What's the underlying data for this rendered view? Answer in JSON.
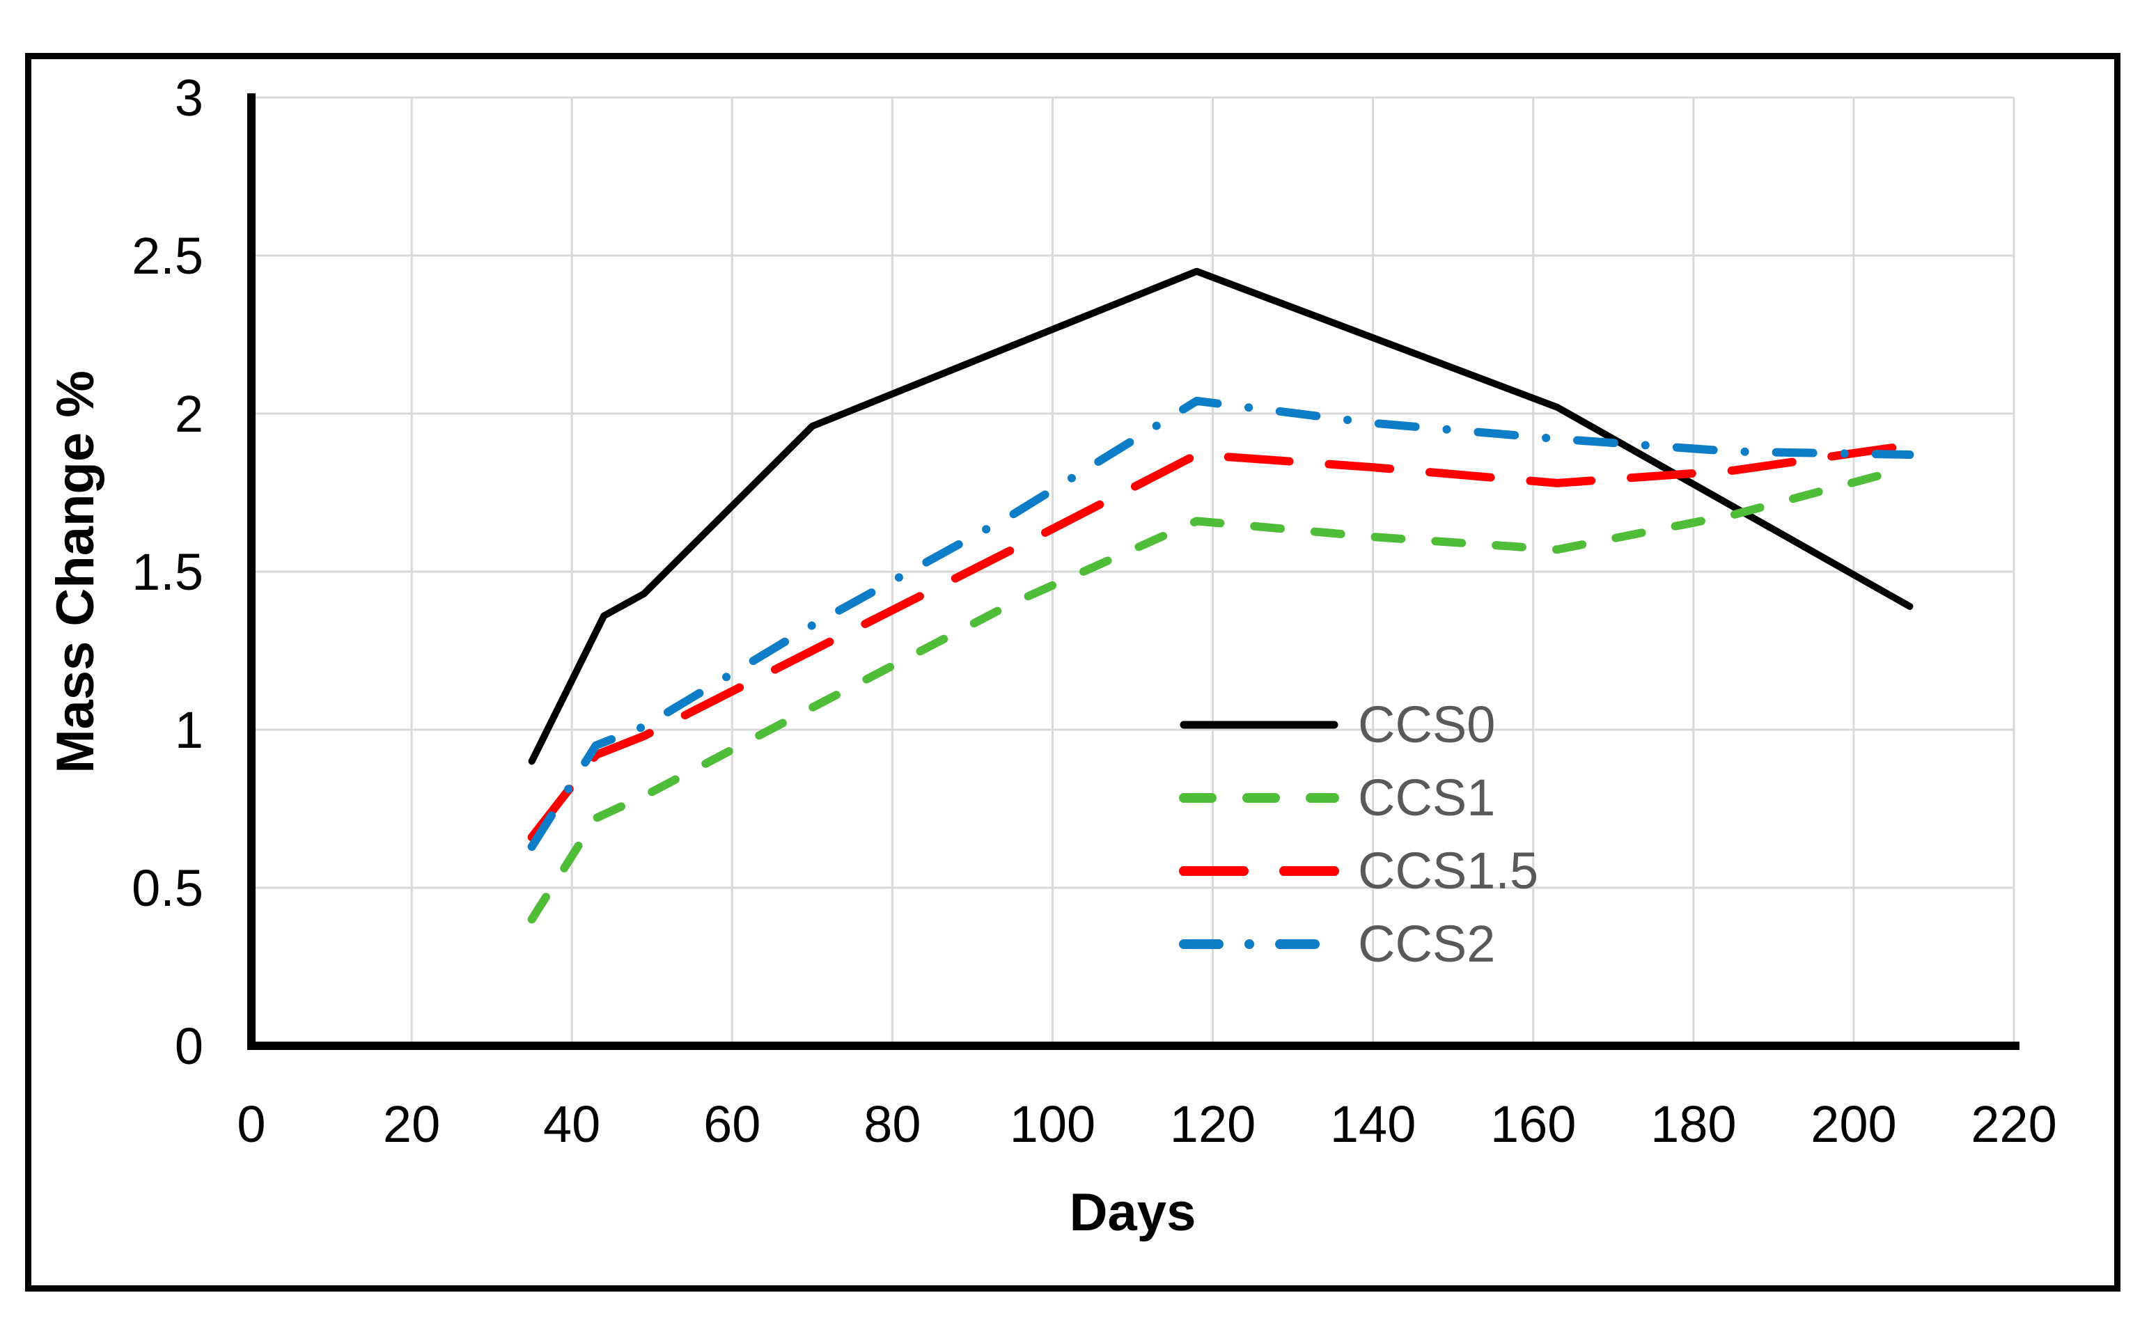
{
  "figure": {
    "background": "#ffffff",
    "border_color": "#000000"
  },
  "chart_data": {
    "type": "line",
    "title": "",
    "xlabel": "Days",
    "ylabel": "Mass Change %",
    "xlim": [
      0,
      220
    ],
    "ylim": [
      0,
      3
    ],
    "xticks": [
      0,
      20,
      40,
      60,
      80,
      100,
      120,
      140,
      160,
      180,
      200,
      220
    ],
    "yticks": [
      0,
      0.5,
      1,
      1.5,
      2,
      2.5,
      3
    ],
    "grid": true,
    "gridline_color": "#D9D9D9",
    "axis_color": "#000000",
    "tick_label_color": "#000000",
    "legend": {
      "position": "inside-center-right",
      "text_color": "#595959"
    },
    "series": [
      {
        "name": "CCS0",
        "color": "#000000",
        "dash": "solid",
        "x": [
          35,
          44,
          49,
          70,
          118,
          163,
          207
        ],
        "y": [
          0.9,
          1.36,
          1.43,
          1.96,
          2.45,
          2.02,
          1.39
        ]
      },
      {
        "name": "CCS1",
        "color": "#4FBD38",
        "dash": "dashed",
        "x": [
          35,
          43,
          49,
          70,
          95,
          118,
          140,
          163,
          185,
          207
        ],
        "y": [
          0.4,
          0.72,
          0.79,
          1.07,
          1.4,
          1.66,
          1.61,
          1.57,
          1.68,
          1.83
        ]
      },
      {
        "name": "CCS1.5",
        "color": "#FF0000",
        "dash": "long-dash",
        "x": [
          35,
          43,
          49,
          70,
          95,
          118,
          140,
          163,
          185,
          207
        ],
        "y": [
          0.66,
          0.92,
          0.98,
          1.25,
          1.57,
          1.87,
          1.83,
          1.78,
          1.82,
          1.9
        ]
      },
      {
        "name": "CCS2",
        "color": "#0E7DC7",
        "dash": "dash-dot",
        "x": [
          35,
          43,
          49,
          70,
          95,
          118,
          140,
          163,
          185,
          207
        ],
        "y": [
          0.63,
          0.95,
          1.01,
          1.33,
          1.68,
          2.04,
          1.97,
          1.92,
          1.88,
          1.87
        ]
      }
    ]
  }
}
